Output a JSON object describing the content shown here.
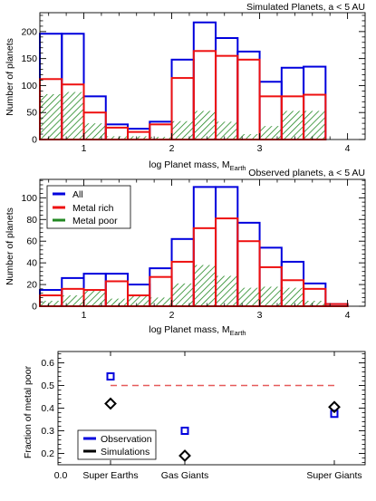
{
  "colors": {
    "all": "#0000dd",
    "metal_rich": "#ee1111",
    "metal_poor": "#228822",
    "axis": "#000000",
    "dashed": "#e65a5a",
    "simulations_marker": "#000000"
  },
  "chart_data": [
    {
      "type": "bar",
      "subtype": "step-histogram",
      "title": "Simulated Planets, a < 5 AU",
      "xlabel_main": "log Planet mass, M",
      "xlabel_sub": "Earth",
      "ylabel": "Number of planets",
      "xlim": [
        0.5,
        4.2
      ],
      "ylim": [
        0,
        235
      ],
      "xticks": [
        1,
        2,
        3,
        4
      ],
      "yticks": [
        0,
        50,
        100,
        150,
        200
      ],
      "bin_edges": [
        0.5,
        0.75,
        1.0,
        1.25,
        1.5,
        1.75,
        2.0,
        2.25,
        2.5,
        2.75,
        3.0,
        3.25,
        3.5,
        3.75,
        4.0,
        4.25
      ],
      "series": [
        {
          "name": "All",
          "key": "all",
          "values": [
            196,
            196,
            80,
            28,
            20,
            33,
            148,
            217,
            188,
            163,
            107,
            133,
            135,
            0,
            0
          ]
        },
        {
          "name": "Metal rich",
          "key": "metal_rich",
          "values": [
            112,
            102,
            50,
            22,
            14,
            28,
            114,
            164,
            155,
            148,
            80,
            80,
            83,
            0,
            0
          ]
        },
        {
          "name": "Metal poor",
          "key": "metal_poor",
          "values": [
            84,
            88,
            30,
            6,
            6,
            5,
            34,
            53,
            33,
            10,
            25,
            53,
            53,
            0,
            0
          ]
        }
      ],
      "legend": null
    },
    {
      "type": "bar",
      "subtype": "step-histogram",
      "title": "Observed planets, a < 5 AU",
      "xlabel_main": "log Planet mass, M",
      "xlabel_sub": "Earth",
      "ylabel": "Number of planets",
      "xlim": [
        0.5,
        4.2
      ],
      "ylim": [
        0,
        117
      ],
      "xticks": [
        1,
        2,
        3,
        4
      ],
      "yticks": [
        0,
        20,
        40,
        60,
        80,
        100
      ],
      "bin_edges": [
        0.5,
        0.75,
        1.0,
        1.25,
        1.5,
        1.75,
        2.0,
        2.25,
        2.5,
        2.75,
        3.0,
        3.25,
        3.5,
        3.75,
        4.0,
        4.25
      ],
      "series": [
        {
          "name": "All",
          "key": "all",
          "values": [
            15,
            26,
            30,
            30,
            20,
            35,
            62,
            110,
            110,
            77,
            54,
            41,
            21,
            2,
            0
          ]
        },
        {
          "name": "Metal rich",
          "key": "metal_rich",
          "values": [
            10,
            16,
            15,
            23,
            10,
            27,
            41,
            72,
            81,
            60,
            36,
            24,
            16,
            2,
            0
          ]
        },
        {
          "name": "Metal poor",
          "key": "metal_poor",
          "values": [
            5,
            10,
            15,
            7,
            10,
            8,
            21,
            38,
            28,
            17,
            18,
            17,
            5,
            0,
            0
          ]
        }
      ],
      "legend": {
        "placement": "top-left",
        "entries": [
          "All",
          "Metal rich",
          "Metal poor"
        ]
      }
    },
    {
      "type": "scatter",
      "ylabel": "Fraction of metal poor",
      "categories": [
        "Super Earths",
        "Gas Giants",
        "Super Giants"
      ],
      "x_origin_label": "0.0",
      "ylim": [
        0.15,
        0.65
      ],
      "yticks": [
        0.2,
        0.3,
        0.4,
        0.5,
        0.6
      ],
      "reference_line": {
        "y": 0.5,
        "style": "dashed"
      },
      "series": [
        {
          "name": "Observation",
          "marker": "square",
          "values": [
            0.54,
            0.3,
            0.375
          ]
        },
        {
          "name": "Simulations",
          "marker": "diamond",
          "values": [
            0.42,
            0.19,
            0.405
          ]
        }
      ],
      "legend": {
        "placement": "bottom-left",
        "entries": [
          "Observation",
          "Simulations"
        ]
      }
    }
  ]
}
